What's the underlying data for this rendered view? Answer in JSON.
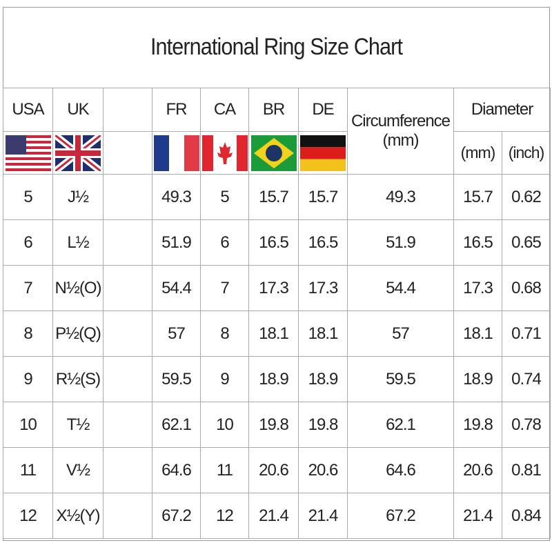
{
  "title": "International Ring Size Chart",
  "headers": [
    "USA",
    "UK",
    "",
    "FR",
    "CA",
    "BR",
    "DE"
  ],
  "circumference_header": [
    "Circumference",
    "(mm)"
  ],
  "diameter_header": "Diameter",
  "diameter_units": [
    "(mm)",
    "(inch)"
  ],
  "flags": [
    "usa-flag-icon",
    "uk-flag-icon",
    "blank",
    "france-flag-icon",
    "canada-flag-icon",
    "brazil-flag-icon",
    "germany-flag-icon"
  ],
  "rows": [
    [
      "5",
      "J½",
      "",
      "49.3",
      "5",
      "15.7",
      "15.7",
      "49.3",
      "15.7",
      "0.62"
    ],
    [
      "6",
      "L½",
      "",
      "51.9",
      "6",
      "16.5",
      "16.5",
      "51.9",
      "16.5",
      "0.65"
    ],
    [
      "7",
      "N½(O)",
      "",
      "54.4",
      "7",
      "17.3",
      "17.3",
      "54.4",
      "17.3",
      "0.68"
    ],
    [
      "8",
      "P½(Q)",
      "",
      "57",
      "8",
      "18.1",
      "18.1",
      "57",
      "18.1",
      "0.71"
    ],
    [
      "9",
      "R½(S)",
      "",
      "59.5",
      "9",
      "18.9",
      "18.9",
      "59.5",
      "18.9",
      "0.74"
    ],
    [
      "10",
      "T½",
      "",
      "62.1",
      "10",
      "19.8",
      "19.8",
      "62.1",
      "19.8",
      "0.78"
    ],
    [
      "11",
      "V½",
      "",
      "64.6",
      "11",
      "20.6",
      "20.6",
      "64.6",
      "20.6",
      "0.81"
    ],
    [
      "12",
      "X½(Y)",
      "",
      "67.2",
      "12",
      "21.4",
      "21.4",
      "67.2",
      "21.4",
      "0.84"
    ]
  ]
}
